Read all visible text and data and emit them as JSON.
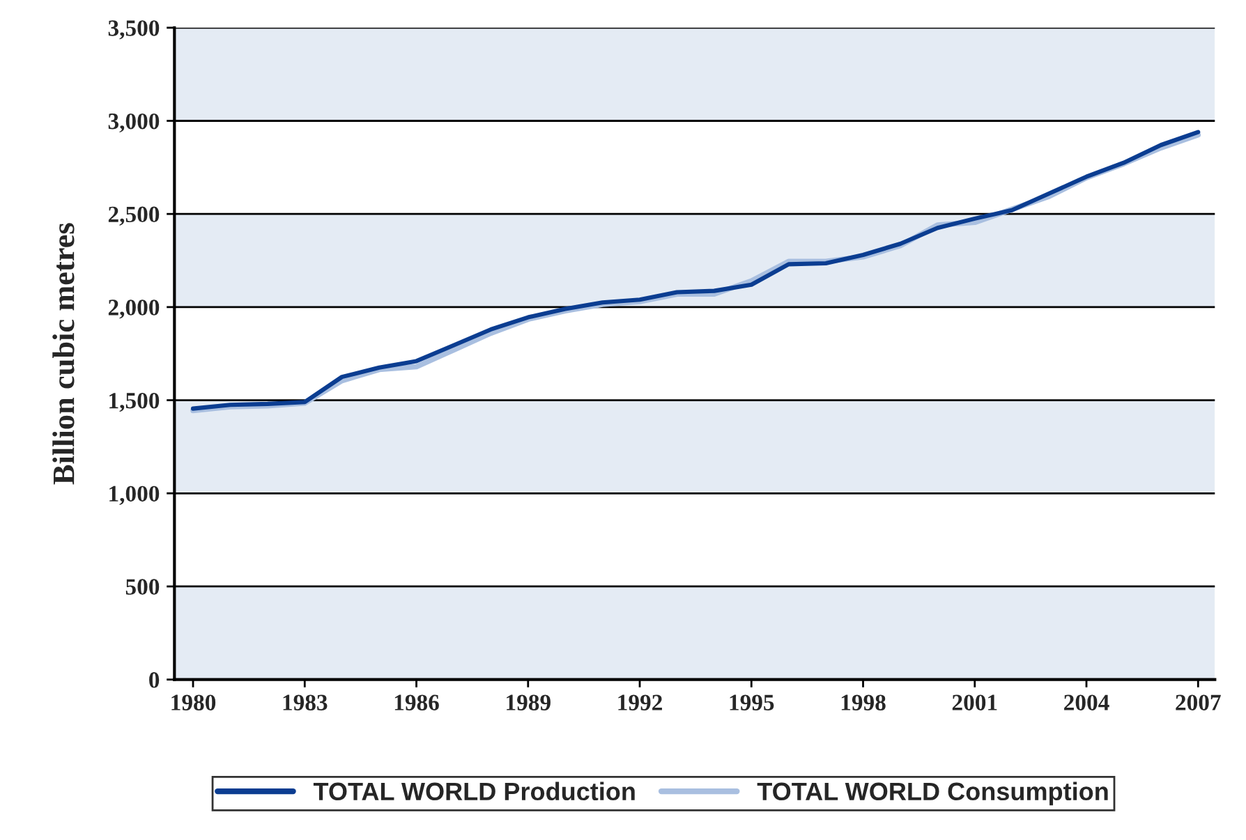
{
  "chart_data": {
    "type": "line",
    "ylabel": "Billion cubic metres",
    "x": [
      1980,
      1981,
      1982,
      1983,
      1984,
      1985,
      1986,
      1987,
      1988,
      1989,
      1990,
      1991,
      1992,
      1993,
      1994,
      1995,
      1996,
      1997,
      1998,
      1999,
      2000,
      2001,
      2002,
      2003,
      2004,
      2005,
      2006,
      2007
    ],
    "series": [
      {
        "name": "TOTAL WORLD Production",
        "color": "#0b3d91",
        "values": [
          1455,
          1475,
          1480,
          1490,
          1625,
          1675,
          1710,
          1795,
          1880,
          1945,
          1990,
          2025,
          2040,
          2080,
          2087,
          2120,
          2230,
          2235,
          2280,
          2340,
          2425,
          2475,
          2520,
          2610,
          2700,
          2775,
          2870,
          2940
        ]
      },
      {
        "name": "TOTAL WORLD Consumption",
        "color": "#a9bfe0",
        "values": [
          1445,
          1465,
          1470,
          1485,
          1605,
          1665,
          1680,
          1770,
          1860,
          1935,
          1980,
          2015,
          2030,
          2070,
          2070,
          2140,
          2245,
          2245,
          2270,
          2330,
          2440,
          2455,
          2525,
          2595,
          2695,
          2770,
          2855,
          2925
        ]
      }
    ],
    "xlim": [
      1979.5,
      2007.45
    ],
    "xticks": [
      1980,
      1983,
      1986,
      1989,
      1992,
      1995,
      1998,
      2001,
      2004,
      2007
    ],
    "ylim": [
      0,
      3500
    ],
    "yticks": [
      0,
      {
        "value": 500,
        "label": "500"
      },
      {
        "value": 1000,
        "label": "1,000"
      },
      {
        "value": 1500,
        "label": "1,500"
      },
      {
        "value": 2000,
        "label": "2,000"
      },
      {
        "value": 2500,
        "label": "2,500"
      },
      {
        "value": 3000,
        "label": "3,000"
      },
      {
        "value": 3500,
        "label": "3,500"
      }
    ],
    "bands": [
      {
        "axis": "y",
        "from": 0,
        "to": 500,
        "color": "#e4ebf4"
      },
      {
        "axis": "y",
        "from": 1000,
        "to": 1500,
        "color": "#e4ebf4"
      },
      {
        "axis": "y",
        "from": 2000,
        "to": 2500,
        "color": "#e4ebf4"
      },
      {
        "axis": "y",
        "from": 3000,
        "to": 3500,
        "color": "#e4ebf4"
      }
    ],
    "grid": "y",
    "legend": "bottom",
    "line_style": "solid",
    "marker": "none"
  }
}
